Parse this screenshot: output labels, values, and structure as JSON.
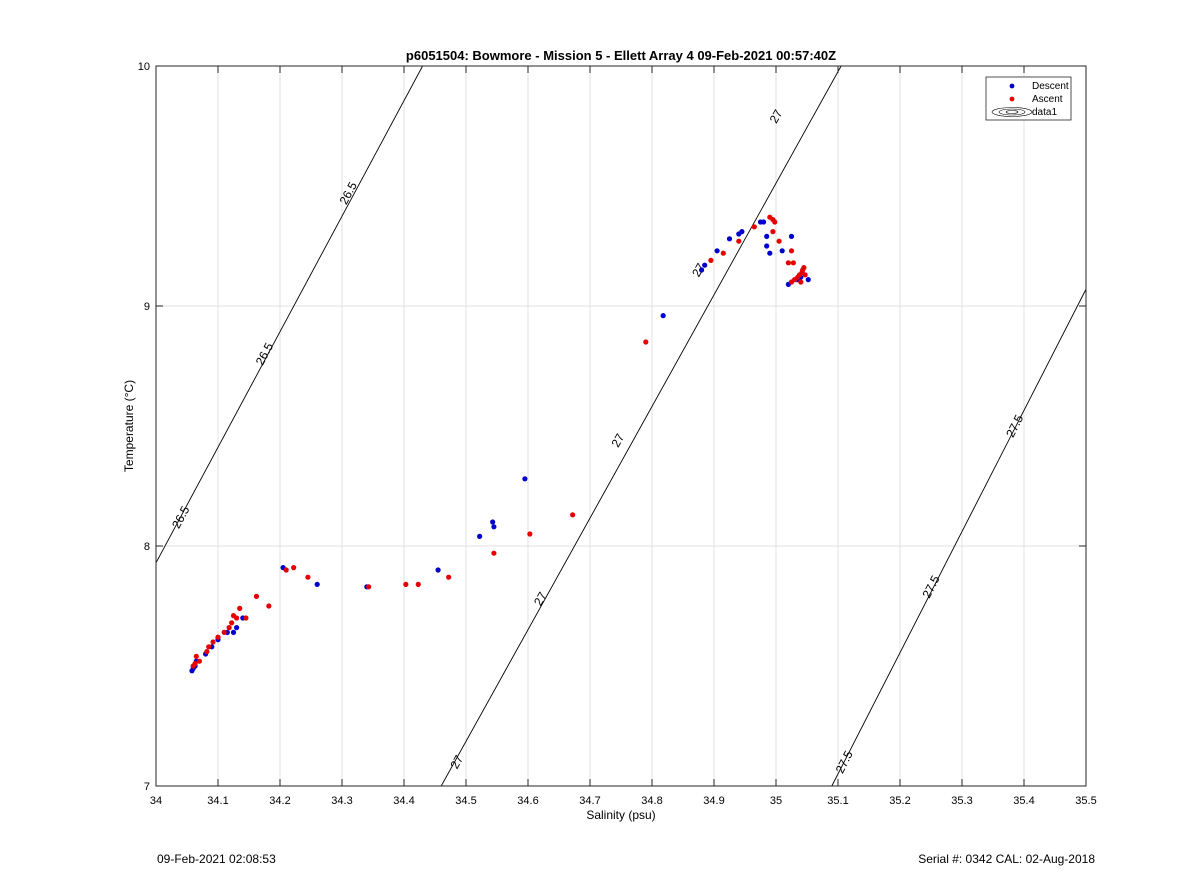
{
  "chart_data": {
    "type": "scatter",
    "title": "p6051504: Bowmore - Mission 5 - Ellett Array 4 09-Feb-2021 00:57:40Z",
    "xlabel": "Salinity (psu)",
    "ylabel": "Temperature (°C)",
    "xlim": [
      34,
      35.5
    ],
    "ylim": [
      7,
      10
    ],
    "xticks": [
      "34",
      "34.1",
      "34.2",
      "34.3",
      "34.4",
      "34.5",
      "34.6",
      "34.7",
      "34.8",
      "34.9",
      "35",
      "35.1",
      "35.2",
      "35.3",
      "35.4",
      "35.5"
    ],
    "yticks": [
      "7",
      "8",
      "9",
      "10"
    ],
    "grid": true,
    "legend_position": "top-right",
    "legend": [
      "Descent",
      "Ascent",
      "data1"
    ],
    "colors": {
      "descent": "#0000cc",
      "ascent": "#e60000",
      "contour": "#000000",
      "grid": "#e0e0e0"
    },
    "series": [
      {
        "name": "Descent",
        "points": [
          [
            34.058,
            7.48
          ],
          [
            34.06,
            7.49
          ],
          [
            34.063,
            7.5
          ],
          [
            34.065,
            7.52
          ],
          [
            34.08,
            7.55
          ],
          [
            34.09,
            7.58
          ],
          [
            34.1,
            7.61
          ],
          [
            34.115,
            7.64
          ],
          [
            34.125,
            7.64
          ],
          [
            34.13,
            7.66
          ],
          [
            34.14,
            7.7
          ],
          [
            34.205,
            7.91
          ],
          [
            34.26,
            7.84
          ],
          [
            34.34,
            7.83
          ],
          [
            34.455,
            7.9
          ],
          [
            34.522,
            8.04
          ],
          [
            34.543,
            8.1
          ],
          [
            34.545,
            8.08
          ],
          [
            34.595,
            8.28
          ],
          [
            34.818,
            8.96
          ],
          [
            34.88,
            9.15
          ],
          [
            34.885,
            9.17
          ],
          [
            34.905,
            9.23
          ],
          [
            34.925,
            9.28
          ],
          [
            34.94,
            9.3
          ],
          [
            34.945,
            9.31
          ],
          [
            34.975,
            9.35
          ],
          [
            34.98,
            9.35
          ],
          [
            34.985,
            9.29
          ],
          [
            34.985,
            9.25
          ],
          [
            34.99,
            9.22
          ],
          [
            35.01,
            9.23
          ],
          [
            35.025,
            9.29
          ],
          [
            35.02,
            9.09
          ],
          [
            35.035,
            9.11
          ],
          [
            35.04,
            9.12
          ],
          [
            35.052,
            9.11
          ]
        ]
      },
      {
        "name": "Ascent",
        "points": [
          [
            34.06,
            7.5
          ],
          [
            34.063,
            7.51
          ],
          [
            34.065,
            7.54
          ],
          [
            34.07,
            7.52
          ],
          [
            34.082,
            7.56
          ],
          [
            34.085,
            7.58
          ],
          [
            34.092,
            7.6
          ],
          [
            34.1,
            7.62
          ],
          [
            34.11,
            7.64
          ],
          [
            34.118,
            7.66
          ],
          [
            34.122,
            7.68
          ],
          [
            34.125,
            7.71
          ],
          [
            34.13,
            7.7
          ],
          [
            34.135,
            7.74
          ],
          [
            34.145,
            7.7
          ],
          [
            34.162,
            7.79
          ],
          [
            34.182,
            7.75
          ],
          [
            34.21,
            7.9
          ],
          [
            34.222,
            7.91
          ],
          [
            34.245,
            7.87
          ],
          [
            34.343,
            7.83
          ],
          [
            34.403,
            7.84
          ],
          [
            34.423,
            7.84
          ],
          [
            34.472,
            7.87
          ],
          [
            34.545,
            7.97
          ],
          [
            34.603,
            8.05
          ],
          [
            34.672,
            8.13
          ],
          [
            34.79,
            8.85
          ],
          [
            34.895,
            9.19
          ],
          [
            34.915,
            9.22
          ],
          [
            34.94,
            9.27
          ],
          [
            34.965,
            9.33
          ],
          [
            34.99,
            9.37
          ],
          [
            34.995,
            9.36
          ],
          [
            34.998,
            9.35
          ],
          [
            34.995,
            9.31
          ],
          [
            35.005,
            9.27
          ],
          [
            35.02,
            9.18
          ],
          [
            35.025,
            9.23
          ],
          [
            35.028,
            9.18
          ],
          [
            35.025,
            9.1
          ],
          [
            35.03,
            9.11
          ],
          [
            35.035,
            9.12
          ],
          [
            35.038,
            9.13
          ],
          [
            35.04,
            9.1
          ],
          [
            35.042,
            9.14
          ],
          [
            35.045,
            9.16
          ],
          [
            35.047,
            9.13
          ],
          [
            35.043,
            9.15
          ]
        ]
      }
    ],
    "contours": [
      {
        "value": "26.5",
        "line": [
          [
            34,
            7.93
          ],
          [
            34.43,
            10
          ]
        ],
        "labels": [
          [
            34.04,
            8.12
          ],
          [
            34.175,
            8.8
          ],
          [
            34.31,
            9.47
          ]
        ]
      },
      {
        "value": "27",
        "line": [
          [
            34.46,
            7
          ],
          [
            35.105,
            10
          ]
        ],
        "labels": [
          [
            34.485,
            7.1
          ],
          [
            34.62,
            7.78
          ],
          [
            34.745,
            8.44
          ],
          [
            34.875,
            9.15
          ],
          [
            35.0,
            9.79
          ]
        ]
      },
      {
        "value": "27.5",
        "line": [
          [
            35.09,
            7
          ],
          [
            35.5,
            9.07
          ]
        ],
        "labels": [
          [
            35.11,
            7.1
          ],
          [
            35.25,
            7.83
          ],
          [
            35.385,
            8.5
          ]
        ]
      }
    ]
  },
  "footer": {
    "timestamp": "09-Feb-2021 02:08:53",
    "serial": "Serial #: 0342  CAL: 02-Aug-2018"
  }
}
